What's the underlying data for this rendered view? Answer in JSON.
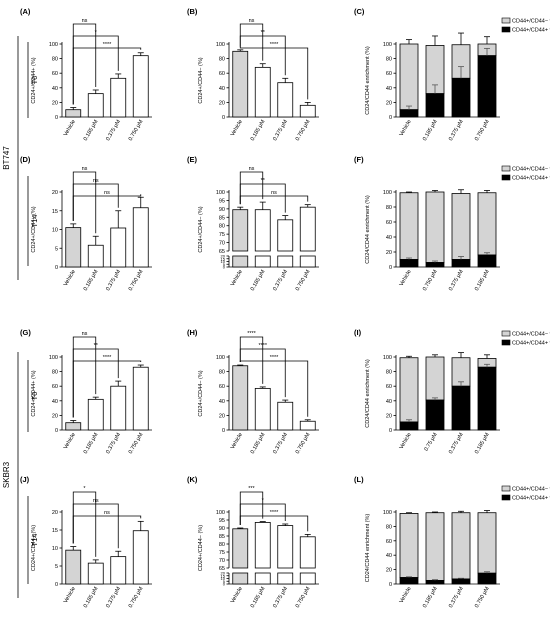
{
  "figure": {
    "cell_lines": [
      "BT747",
      "SKBR3"
    ],
    "timepoints": [
      "T0",
      "T14",
      "T0",
      "T14"
    ],
    "colors": {
      "vehicle_fill": "#d4d4d4",
      "bar_fill": "#ffffff",
      "negative_fill": "#d4d4d4",
      "positive_fill": "#000000",
      "ink": "#000000"
    }
  },
  "chart_data": [
    {
      "panel": "(A)",
      "type": "bar",
      "ylabel": "CD24+/CD44+ (%)",
      "categories": [
        "Vehicle",
        "0.185 μM",
        "0.375 μM",
        "0.750 μM"
      ],
      "values": [
        10,
        32,
        53,
        84
      ],
      "errors": [
        3,
        5,
        6,
        4
      ],
      "ylim": [
        0,
        100
      ],
      "yticks": [
        0,
        20,
        40,
        60,
        80,
        100
      ],
      "brackets": [
        {
          "to": 1,
          "label": "ns"
        },
        {
          "to": 2,
          "label": "*"
        },
        {
          "to": 3,
          "label": "****"
        }
      ]
    },
    {
      "panel": "(B)",
      "type": "bar",
      "ylabel": "CD24+/CD44− (%)",
      "categories": [
        "Vehicle",
        "0.185 μM",
        "0.375 μM",
        "0.750 μM"
      ],
      "values": [
        90,
        68,
        47,
        16
      ],
      "errors": [
        2,
        5,
        6,
        4
      ],
      "ylim": [
        0,
        100
      ],
      "yticks": [
        0,
        20,
        40,
        60,
        80,
        100
      ],
      "brackets": [
        {
          "to": 1,
          "label": "ns"
        },
        {
          "to": 2,
          "label": "**"
        },
        {
          "to": 3,
          "label": "****"
        }
      ]
    },
    {
      "panel": "(C)",
      "type": "stacked-bar",
      "ylabel": "CD24/CD44 enrichment (%)",
      "categories": [
        "Vehicle",
        "0.185 μM",
        "0.375 μM",
        "0.750 μM"
      ],
      "ylim": [
        0,
        100
      ],
      "yticks": [
        0,
        20,
        40,
        60,
        80,
        100
      ],
      "series": [
        {
          "name": "CD44+/CD44− %",
          "values": [
            90,
            66,
            46,
            16
          ],
          "errors": [
            6,
            13,
            16,
            10
          ]
        },
        {
          "name": "CD44+/CD44+ %",
          "values": [
            10,
            32,
            53,
            84
          ],
          "errors": [
            5,
            12,
            16,
            10
          ]
        }
      ]
    },
    {
      "panel": "(D)",
      "type": "bar",
      "ylabel": "CD24+/CD44+ (%)",
      "categories": [
        "Vehicle",
        "0.185 μM",
        "0.375 μM",
        "0.750 μM"
      ],
      "values": [
        10.5,
        5.8,
        10.4,
        15.8
      ],
      "errors": [
        1.0,
        2.4,
        4.6,
        2.8
      ],
      "ylim": [
        0,
        20
      ],
      "yticks": [
        0,
        5,
        10,
        15,
        20
      ],
      "brackets": [
        {
          "to": 1,
          "label": "ns"
        },
        {
          "to": 2,
          "label": "ns"
        },
        {
          "to": 3,
          "label": "ns"
        }
      ]
    },
    {
      "panel": "(E)",
      "type": "bar",
      "ylabel": "CD24+/CD44− (%)",
      "categories": [
        "Vehicle",
        "0.185 μM",
        "0.375 μM",
        "0.750 μM"
      ],
      "values": [
        89.5,
        89.5,
        83.5,
        91
      ],
      "errors": [
        1.5,
        4.5,
        2.5,
        1.5
      ],
      "ylim": [
        65,
        100
      ],
      "yticks": [
        65,
        70,
        75,
        80,
        85,
        90,
        95,
        100
      ],
      "broken_axis_ticks": [
        0,
        5,
        10,
        15,
        20
      ],
      "brackets": [
        {
          "to": 1,
          "label": "ns"
        },
        {
          "to": 2,
          "label": "**"
        },
        {
          "to": 3,
          "label": "ns"
        }
      ]
    },
    {
      "panel": "(F)",
      "type": "stacked-bar",
      "ylabel": "CD24/CD44 enrichment (%)",
      "categories": [
        "Vehicle",
        "0.750 μM",
        "0.375 μM",
        "0.185 μM"
      ],
      "ylim": [
        0,
        100
      ],
      "yticks": [
        0,
        20,
        40,
        60,
        80,
        100
      ],
      "series": [
        {
          "name": "CD44+/CD44− %",
          "values": [
            89,
            94,
            88,
            83
          ],
          "errors": [
            1,
            2,
            5,
            3
          ]
        },
        {
          "name": "CD44+/CD44+ %",
          "values": [
            10,
            6,
            10,
            16
          ],
          "errors": [
            2,
            2,
            4,
            3
          ]
        }
      ]
    },
    {
      "panel": "(G)",
      "type": "bar",
      "ylabel": "CD24+/CD44+ (%)",
      "categories": [
        "Vehicle",
        "0.185 μM",
        "0.375 μM",
        "0.750 μM"
      ],
      "values": [
        10,
        42,
        60,
        86
      ],
      "errors": [
        3,
        3,
        7,
        3
      ],
      "ylim": [
        0,
        100
      ],
      "yticks": [
        0,
        20,
        40,
        60,
        80,
        100
      ],
      "brackets": [
        {
          "to": 1,
          "label": "ns"
        },
        {
          "to": 2,
          "label": "**"
        },
        {
          "to": 3,
          "label": "****"
        }
      ]
    },
    {
      "panel": "(H)",
      "type": "bar",
      "ylabel": "CD24+/CD44− (%)",
      "categories": [
        "Vehicle",
        "0.185 μM",
        "0.375 μM",
        "0.750 μM"
      ],
      "values": [
        88,
        57,
        38,
        12
      ],
      "errors": [
        1,
        2,
        3,
        2
      ],
      "ylim": [
        0,
        100
      ],
      "yticks": [
        0,
        20,
        40,
        60,
        80,
        100
      ],
      "brackets": [
        {
          "to": 1,
          "label": "****"
        },
        {
          "to": 2,
          "label": "****"
        },
        {
          "to": 3,
          "label": "****"
        }
      ]
    },
    {
      "panel": "(I)",
      "type": "stacked-bar",
      "ylabel": "CD24/CD44 enrichment (%)",
      "categories": [
        "Vehicle",
        "0.75 μM",
        "0.375 μM",
        "0.185 μM"
      ],
      "ylim": [
        0,
        100
      ],
      "yticks": [
        0,
        20,
        40,
        60,
        80,
        100
      ],
      "series": [
        {
          "name": "CD44+/CD44− %",
          "values": [
            88,
            59,
            39,
            12
          ],
          "errors": [
            2,
            3,
            7,
            5
          ]
        },
        {
          "name": "CD44+/CD44+ %",
          "values": [
            11,
            41,
            60,
            86
          ],
          "errors": [
            3,
            3,
            6,
            4
          ]
        }
      ]
    },
    {
      "panel": "(J)",
      "type": "bar",
      "ylabel": "CD24+/CD44+ (%)",
      "categories": [
        "Vehicle",
        "0.185 μM",
        "0.375 μM",
        "0.750 μM"
      ],
      "values": [
        9.4,
        5.8,
        7.6,
        14.8
      ],
      "errors": [
        1.0,
        0.9,
        1.5,
        2.6
      ],
      "ylim": [
        0,
        20
      ],
      "yticks": [
        0,
        5,
        10,
        15,
        20
      ],
      "brackets": [
        {
          "to": 1,
          "label": "*"
        },
        {
          "to": 2,
          "label": "ns"
        },
        {
          "to": 3,
          "label": "ns"
        }
      ]
    },
    {
      "panel": "(K)",
      "type": "bar",
      "ylabel": "CD24+/CD44− (%)",
      "categories": [
        "Vehicle",
        "0.185 μM",
        "0.375 μM",
        "0.750 μM"
      ],
      "values": [
        89.5,
        93.5,
        91.5,
        84.5
      ],
      "errors": [
        0.5,
        0.5,
        1.0,
        1.5
      ],
      "ylim": [
        65,
        100
      ],
      "yticks": [
        65,
        70,
        75,
        80,
        85,
        90,
        95,
        100
      ],
      "broken_axis_ticks": [
        0,
        5,
        10,
        15,
        20
      ],
      "brackets": [
        {
          "to": 1,
          "label": "***"
        },
        {
          "to": 2,
          "label": "*"
        },
        {
          "to": 3,
          "label": "****"
        }
      ]
    },
    {
      "panel": "(L)",
      "type": "stacked-bar",
      "ylabel": "CD24/CD44 enrichment (%)",
      "categories": [
        "Vehicle",
        "0.185 μM",
        "0.375 μM",
        "0.750 μM"
      ],
      "ylim": [
        0,
        100
      ],
      "yticks": [
        0,
        20,
        40,
        60,
        80,
        100
      ],
      "series": [
        {
          "name": "CD44+/CD44− %",
          "values": [
            89,
            94,
            92,
            84
          ],
          "errors": [
            1,
            1,
            2,
            3
          ]
        },
        {
          "name": "CD44+/CD44+ %",
          "values": [
            9,
            5,
            7,
            15
          ],
          "errors": [
            1,
            1,
            1,
            2
          ]
        }
      ]
    }
  ]
}
